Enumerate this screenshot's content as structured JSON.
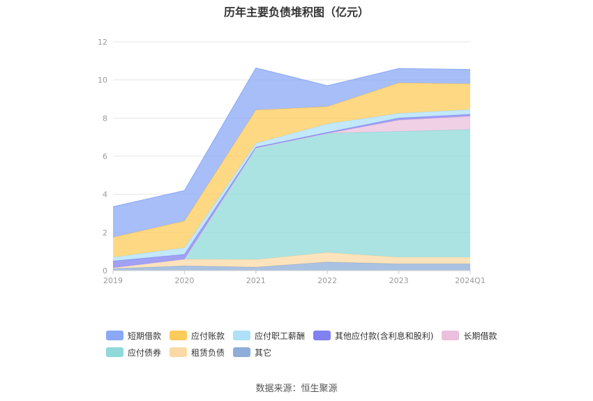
{
  "chart_data": {
    "type": "area",
    "title": "历年主要负债堆积图（亿元）",
    "categories": [
      "2019",
      "2020",
      "2021",
      "2022",
      "2023",
      "2024Q1"
    ],
    "ylim": [
      0,
      12
    ],
    "yticks": [
      "0",
      "2",
      "4",
      "6",
      "8",
      "10",
      "12"
    ],
    "grid": true,
    "legend_position": "bottom",
    "series": [
      {
        "name": "其它",
        "color": "#8eadd8",
        "values": [
          0.1,
          0.25,
          0.18,
          0.45,
          0.35,
          0.35
        ]
      },
      {
        "name": "租赁负债",
        "color": "#fbd9a5",
        "values": [
          0.05,
          0.35,
          0.4,
          0.5,
          0.35,
          0.35
        ]
      },
      {
        "name": "应付债券",
        "color": "#8fd9d9",
        "values": [
          0,
          0,
          5.85,
          6.25,
          6.6,
          6.7
        ]
      },
      {
        "name": "长期借款",
        "color": "#eac0dc",
        "values": [
          0,
          0,
          0,
          0,
          0.6,
          0.7
        ]
      },
      {
        "name": "其他应付款(含利息和股利)",
        "color": "#8181f0",
        "values": [
          0.35,
          0.25,
          0.05,
          0.05,
          0.1,
          0.1
        ]
      },
      {
        "name": "应付职工薪酬",
        "color": "#aee0f8",
        "values": [
          0.2,
          0.35,
          0.2,
          0.45,
          0.25,
          0.25
        ]
      },
      {
        "name": "应付账款",
        "color": "#fdcb5a",
        "values": [
          1.05,
          1.4,
          1.75,
          0.9,
          1.6,
          1.35
        ]
      },
      {
        "name": "短期借款",
        "color": "#8aa8f6",
        "values": [
          1.6,
          1.6,
          2.2,
          1.1,
          0.75,
          0.75
        ]
      }
    ],
    "legend_order": [
      "短期借款",
      "应付账款",
      "应付职工薪酬",
      "其他应付款(含利息和股利)",
      "长期借款",
      "应付债券",
      "租赁负债",
      "其它"
    ]
  },
  "footer": {
    "source": "数据来源：恒生聚源"
  }
}
